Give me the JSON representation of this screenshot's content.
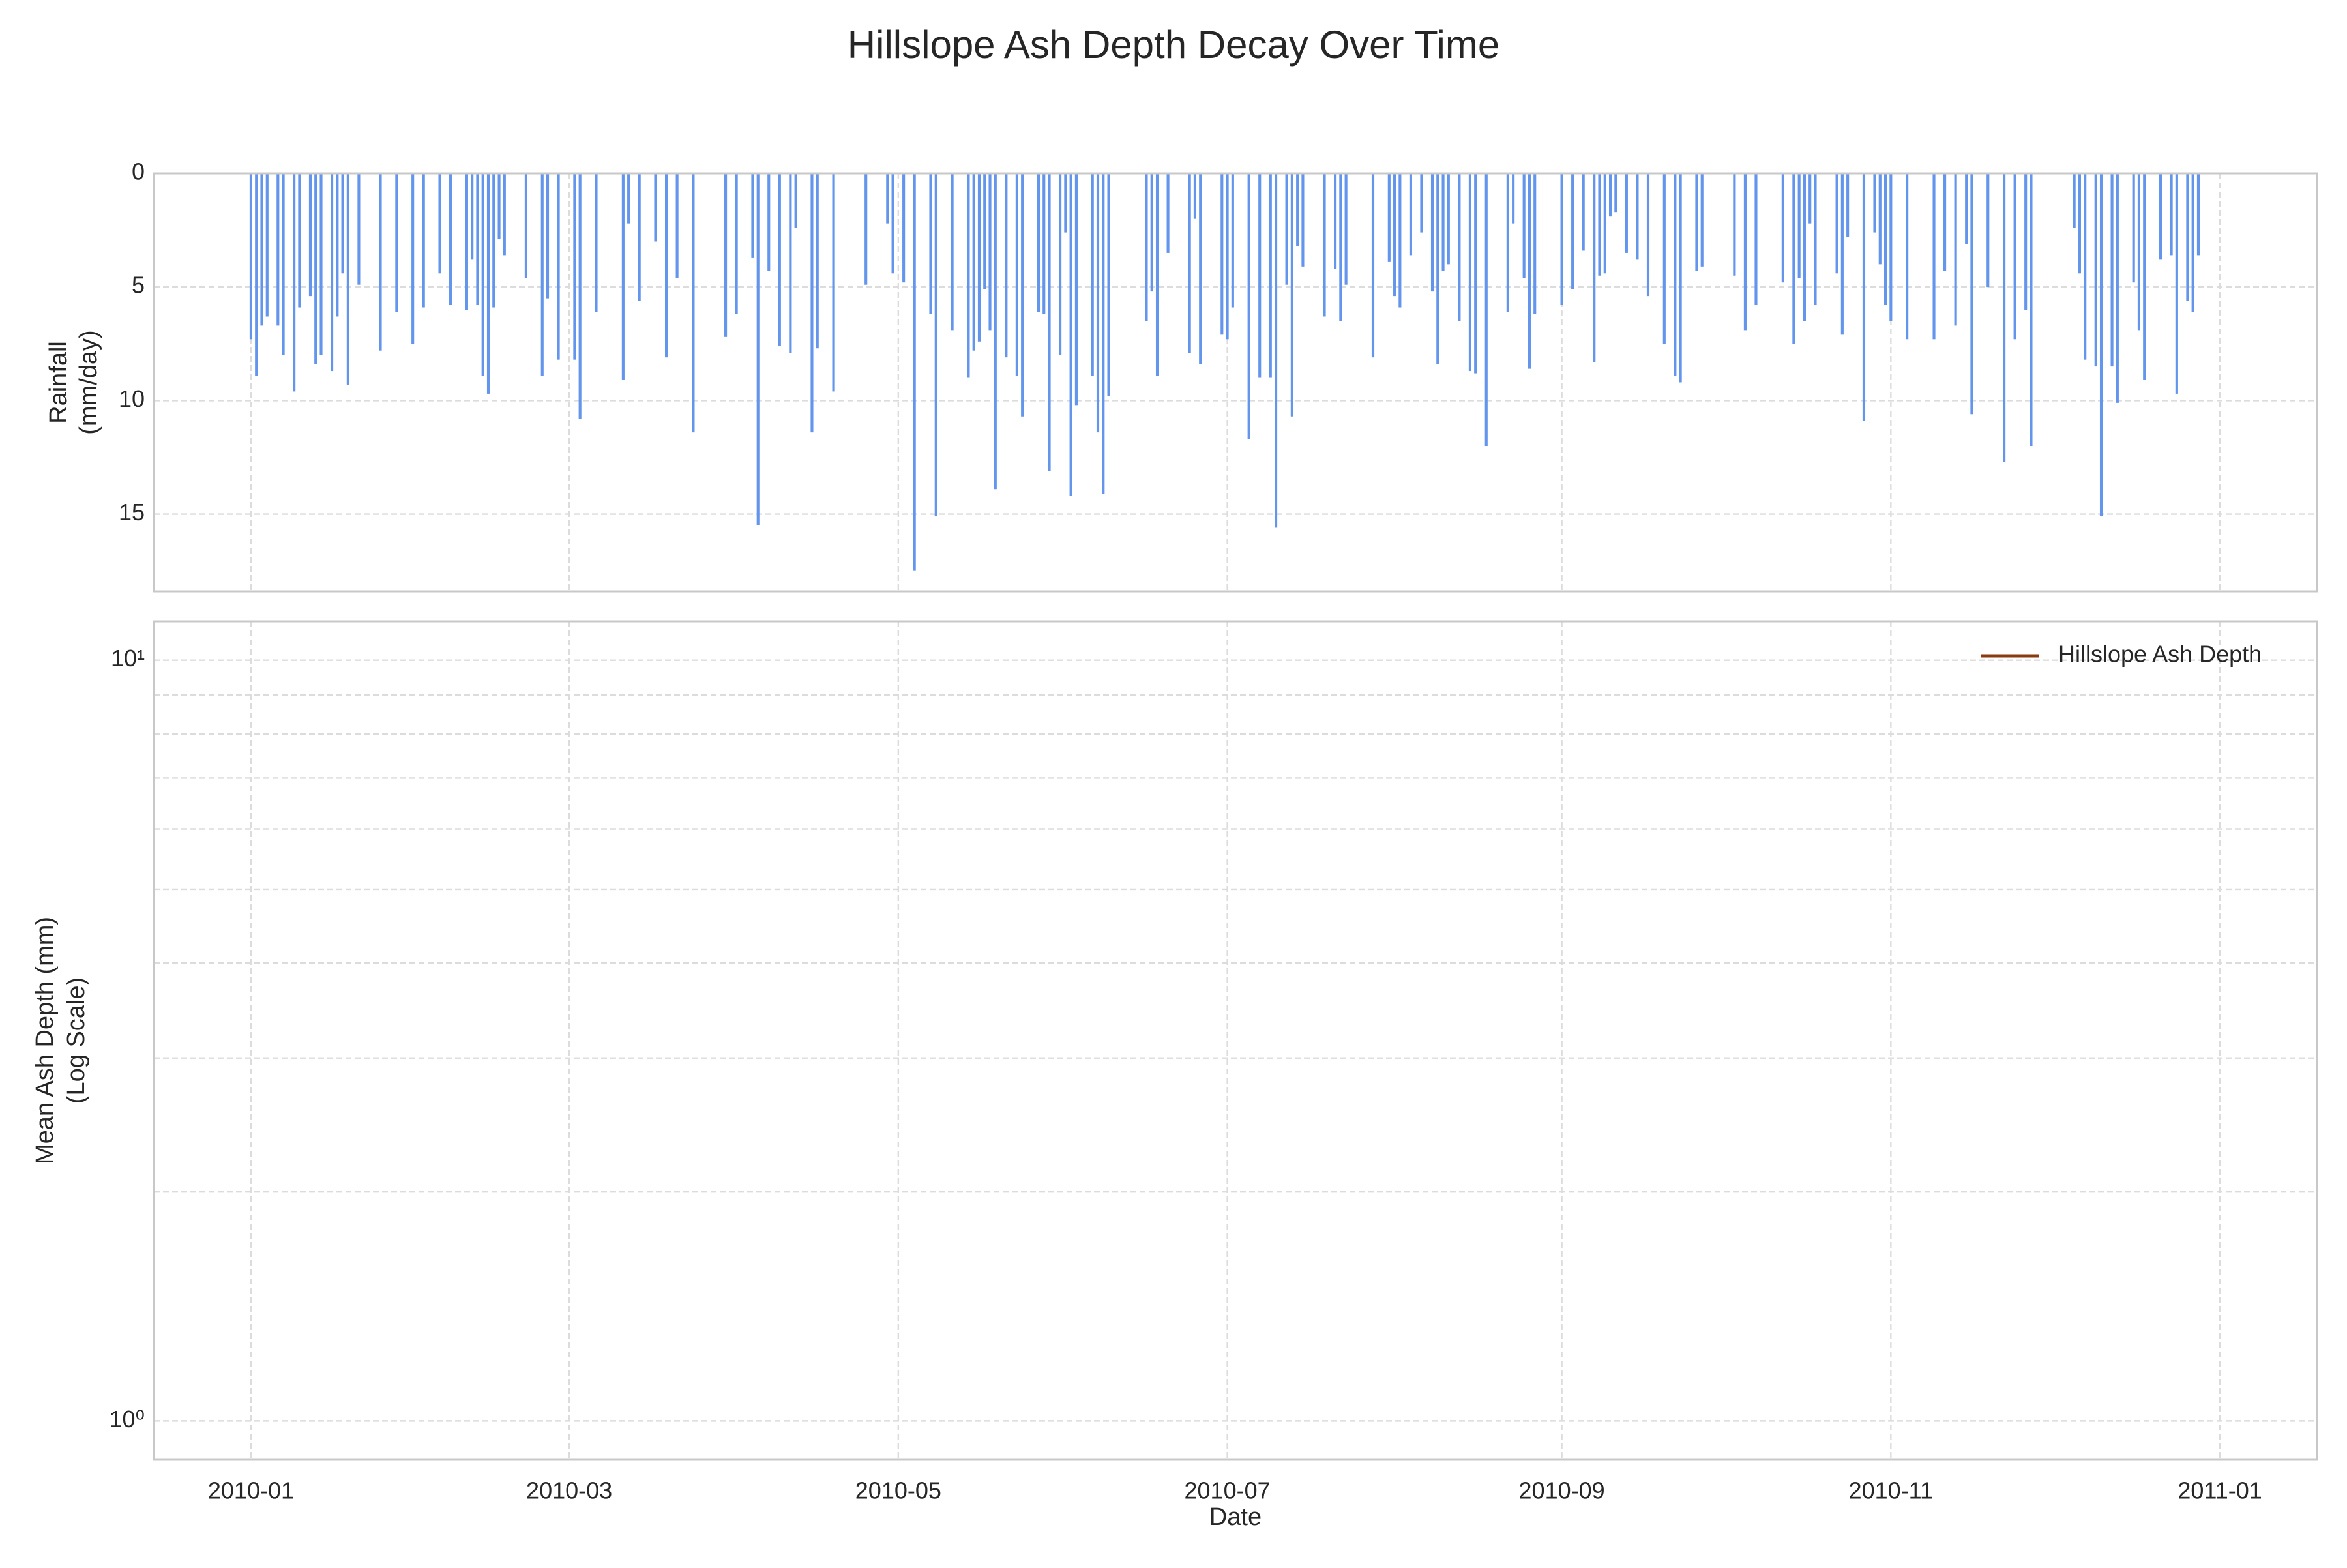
{
  "title": "Hillslope Ash Depth Decay Over Time",
  "chart_data": [
    {
      "type": "bar",
      "sharex": true,
      "color": "#6495ed",
      "grid": true,
      "ylabel": [
        "Rainfall",
        "(mm/day)"
      ],
      "ylim": [
        18.4,
        0
      ],
      "yticks": [
        0,
        5,
        10,
        15
      ],
      "x": [
        "2010-01-01",
        "2010-01-02",
        "2010-01-03",
        "2010-01-04",
        "2010-01-06",
        "2010-01-07",
        "2010-01-09",
        "2010-01-10",
        "2010-01-12",
        "2010-01-13",
        "2010-01-14",
        "2010-01-16",
        "2010-01-17",
        "2010-01-18",
        "2010-01-19",
        "2010-01-21",
        "2010-01-25",
        "2010-01-28",
        "2010-01-31",
        "2010-02-02",
        "2010-02-05",
        "2010-02-07",
        "2010-02-10",
        "2010-02-11",
        "2010-02-12",
        "2010-02-13",
        "2010-02-14",
        "2010-02-15",
        "2010-02-16",
        "2010-02-17",
        "2010-02-21",
        "2010-02-24",
        "2010-02-25",
        "2010-02-27",
        "2010-03-02",
        "2010-03-03",
        "2010-03-06",
        "2010-03-11",
        "2010-03-12",
        "2010-03-14",
        "2010-03-17",
        "2010-03-19",
        "2010-03-21",
        "2010-03-24",
        "2010-03-30",
        "2010-04-01",
        "2010-04-04",
        "2010-04-05",
        "2010-04-07",
        "2010-04-09",
        "2010-04-11",
        "2010-04-12",
        "2010-04-15",
        "2010-04-16",
        "2010-04-19",
        "2010-04-25",
        "2010-04-29",
        "2010-04-30",
        "2010-05-02",
        "2010-05-04",
        "2010-05-07",
        "2010-05-08",
        "2010-05-11",
        "2010-05-14",
        "2010-05-15",
        "2010-05-16",
        "2010-05-17",
        "2010-05-18",
        "2010-05-19",
        "2010-05-21",
        "2010-05-23",
        "2010-05-24",
        "2010-05-27",
        "2010-05-28",
        "2010-05-29",
        "2010-05-31",
        "2010-06-01",
        "2010-06-02",
        "2010-06-03",
        "2010-06-06",
        "2010-06-07",
        "2010-06-08",
        "2010-06-09",
        "2010-06-16",
        "2010-06-17",
        "2010-06-18",
        "2010-06-20",
        "2010-06-24",
        "2010-06-25",
        "2010-06-26",
        "2010-06-30",
        "2010-07-01",
        "2010-07-02",
        "2010-07-05",
        "2010-07-07",
        "2010-07-09",
        "2010-07-10",
        "2010-07-12",
        "2010-07-13",
        "2010-07-14",
        "2010-07-15",
        "2010-07-19",
        "2010-07-21",
        "2010-07-22",
        "2010-07-23",
        "2010-07-28",
        "2010-07-31",
        "2010-08-01",
        "2010-08-02",
        "2010-08-04",
        "2010-08-06",
        "2010-08-08",
        "2010-08-09",
        "2010-08-10",
        "2010-08-11",
        "2010-08-13",
        "2010-08-15",
        "2010-08-16",
        "2010-08-18",
        "2010-08-22",
        "2010-08-23",
        "2010-08-25",
        "2010-08-26",
        "2010-08-27",
        "2010-09-01",
        "2010-09-03",
        "2010-09-05",
        "2010-09-07",
        "2010-09-08",
        "2010-09-09",
        "2010-09-10",
        "2010-09-11",
        "2010-09-13",
        "2010-09-15",
        "2010-09-17",
        "2010-09-20",
        "2010-09-22",
        "2010-09-23",
        "2010-09-26",
        "2010-09-27",
        "2010-10-03",
        "2010-10-05",
        "2010-10-07",
        "2010-10-12",
        "2010-10-14",
        "2010-10-15",
        "2010-10-16",
        "2010-10-17",
        "2010-10-18",
        "2010-10-22",
        "2010-10-23",
        "2010-10-24",
        "2010-10-27",
        "2010-10-29",
        "2010-10-30",
        "2010-10-31",
        "2010-11-01",
        "2010-11-04",
        "2010-11-09",
        "2010-11-11",
        "2010-11-13",
        "2010-11-15",
        "2010-11-16",
        "2010-11-19",
        "2010-11-22",
        "2010-11-24",
        "2010-11-26",
        "2010-11-27",
        "2010-12-05",
        "2010-12-06",
        "2010-12-07",
        "2010-12-09",
        "2010-12-10",
        "2010-12-12",
        "2010-12-13",
        "2010-12-16",
        "2010-12-17",
        "2010-12-18",
        "2010-12-21",
        "2010-12-23",
        "2010-12-24",
        "2010-12-26",
        "2010-12-27",
        "2010-12-28"
      ],
      "values": [
        7.3,
        8.9,
        6.7,
        6.3,
        6.7,
        8.0,
        9.6,
        5.9,
        5.4,
        8.4,
        8.0,
        8.7,
        6.3,
        4.4,
        9.3,
        4.9,
        7.8,
        6.1,
        7.5,
        5.9,
        4.4,
        5.8,
        6.0,
        3.8,
        5.8,
        8.9,
        9.7,
        5.9,
        2.9,
        3.6,
        4.6,
        8.9,
        5.5,
        8.2,
        8.2,
        10.8,
        6.1,
        9.1,
        2.2,
        5.6,
        3.0,
        8.1,
        4.6,
        11.4,
        7.2,
        6.2,
        3.7,
        15.5,
        4.3,
        7.6,
        7.9,
        2.4,
        11.4,
        7.7,
        9.6,
        4.9,
        2.2,
        4.4,
        4.8,
        17.5,
        6.2,
        15.1,
        6.9,
        9.0,
        7.8,
        7.4,
        5.1,
        6.9,
        13.9,
        8.1,
        8.9,
        10.7,
        6.1,
        6.2,
        13.1,
        8.0,
        2.6,
        14.2,
        10.2,
        8.9,
        11.4,
        14.1,
        9.8,
        6.5,
        5.2,
        8.9,
        3.5,
        7.9,
        2.0,
        8.4,
        7.1,
        7.3,
        5.9,
        11.7,
        9.0,
        9.0,
        15.6,
        4.9,
        10.7,
        3.2,
        4.1,
        6.3,
        4.2,
        6.5,
        4.9,
        8.1,
        3.9,
        5.4,
        5.9,
        3.6,
        2.6,
        5.2,
        8.4,
        4.3,
        4.0,
        6.5,
        8.7,
        8.8,
        12.0,
        6.1,
        2.2,
        4.6,
        8.6,
        6.2,
        5.8,
        5.1,
        3.4,
        8.3,
        4.5,
        4.4,
        1.9,
        1.7,
        3.5,
        3.8,
        5.4,
        7.5,
        8.9,
        9.2,
        4.3,
        4.1,
        4.5,
        6.9,
        5.8,
        4.8,
        7.5,
        4.6,
        6.5,
        2.2,
        5.8,
        4.4,
        7.1,
        2.8,
        10.9,
        2.6,
        4.0,
        5.8,
        6.5,
        7.3,
        7.3,
        4.3,
        6.7,
        3.1,
        10.6,
        5.0,
        12.7,
        7.3,
        6.0,
        12.0,
        2.4,
        4.4,
        8.2,
        8.5,
        15.1,
        8.5,
        10.1,
        4.8,
        6.9,
        9.1,
        3.8,
        3.6,
        9.7,
        5.6,
        6.1,
        3.6
      ]
    },
    {
      "type": "line",
      "log_y": true,
      "grid": true,
      "legend": "upper right",
      "xlabel": "Date",
      "ylabel": [
        "Mean Ash Depth (mm)",
        "(Log Scale)"
      ],
      "xlim": [
        "2009-12-14",
        "2011-01-19"
      ],
      "xticks": [
        "2010-01",
        "2010-03",
        "2010-05",
        "2010-07",
        "2010-09",
        "2010-11",
        "2011-01"
      ],
      "ylim": [
        0.889,
        11.25
      ],
      "yticks": [
        {
          "value": 1,
          "label": "10⁰"
        },
        {
          "value": 10,
          "label": "10¹"
        }
      ],
      "yminorticks": [
        2,
        3,
        4,
        5,
        6,
        7,
        8,
        9
      ],
      "series": [
        {
          "name": "Hillslope Ash Depth",
          "color": "#8b3a0f",
          "x": [],
          "values": []
        }
      ]
    }
  ]
}
